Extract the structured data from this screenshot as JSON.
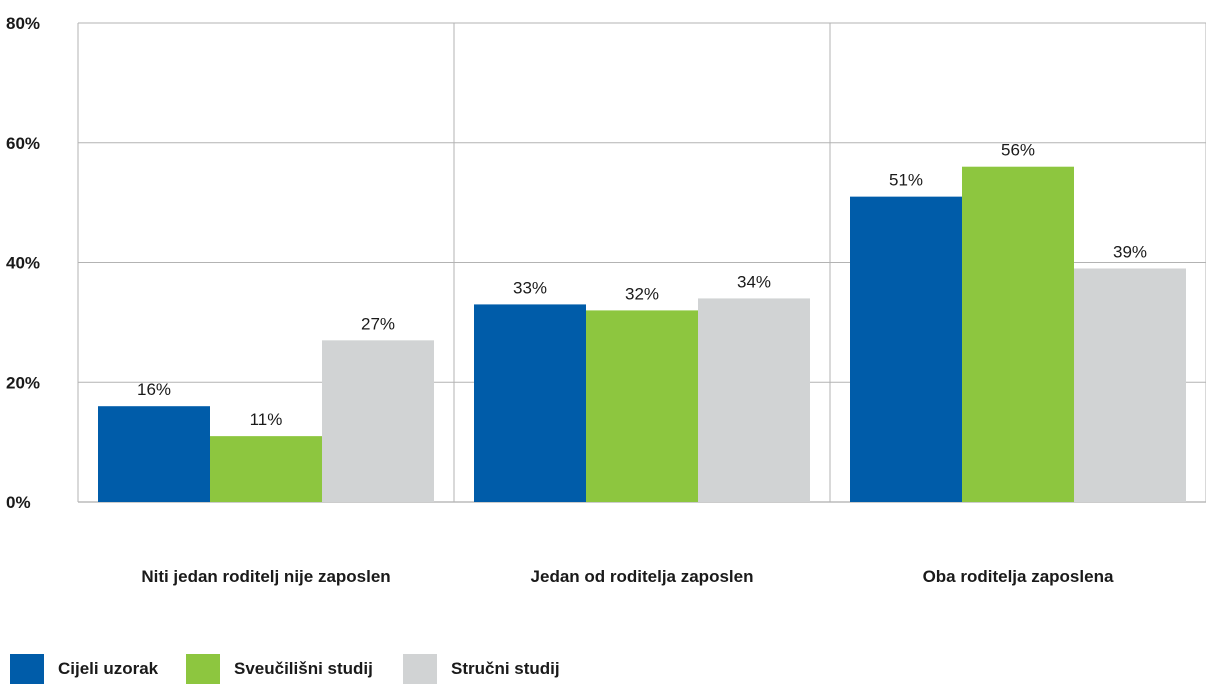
{
  "chart_data": {
    "type": "bar",
    "categories": [
      "Niti jedan roditelj nije zaposlen",
      "Jedan od roditelja zaposlen",
      "Oba roditelja zaposlena"
    ],
    "series": [
      {
        "name": "Cijeli uzorak",
        "color": "#005ca9",
        "values": [
          16,
          33,
          51
        ],
        "labels": [
          "16%",
          "33%",
          "51%"
        ]
      },
      {
        "name": "Sveučilišni studij",
        "color": "#8dc63f",
        "values": [
          11,
          32,
          56
        ],
        "labels": [
          "11%",
          "32%",
          "56%"
        ]
      },
      {
        "name": "Stručni studij",
        "color": "#d1d3d4",
        "values": [
          27,
          34,
          39
        ],
        "labels": [
          "27%",
          "34%",
          "39%"
        ]
      }
    ],
    "ylim": [
      0,
      80
    ],
    "yticks": [
      0,
      20,
      40,
      60,
      80
    ],
    "ytick_labels": [
      "0%",
      "20%",
      "40%",
      "60%",
      "80%"
    ],
    "grid": true,
    "legend_position": "bottom-left"
  }
}
